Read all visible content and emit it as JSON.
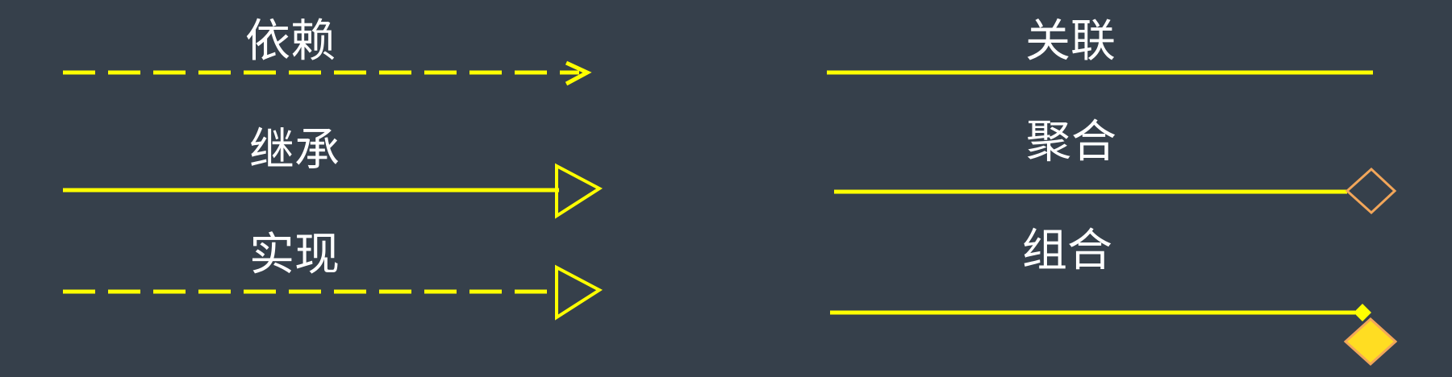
{
  "colors": {
    "background": "#36404b",
    "line": "#ffff00",
    "diamond_outline": "#f2a65a",
    "diamond_fill": "#ffdd22",
    "text": "#ffffff"
  },
  "relations": {
    "dependency": {
      "label": "依赖",
      "line_style": "dashed",
      "end": "open-arrow"
    },
    "inheritance": {
      "label": "继承",
      "line_style": "solid",
      "end": "hollow-triangle"
    },
    "realization": {
      "label": "实现",
      "line_style": "dashed",
      "end": "hollow-triangle"
    },
    "association": {
      "label": "关联",
      "line_style": "solid",
      "end": "none"
    },
    "aggregation": {
      "label": "聚合",
      "line_style": "solid",
      "end": "hollow-diamond"
    },
    "composition": {
      "label": "组合",
      "line_style": "solid",
      "end": "filled-diamond"
    }
  }
}
